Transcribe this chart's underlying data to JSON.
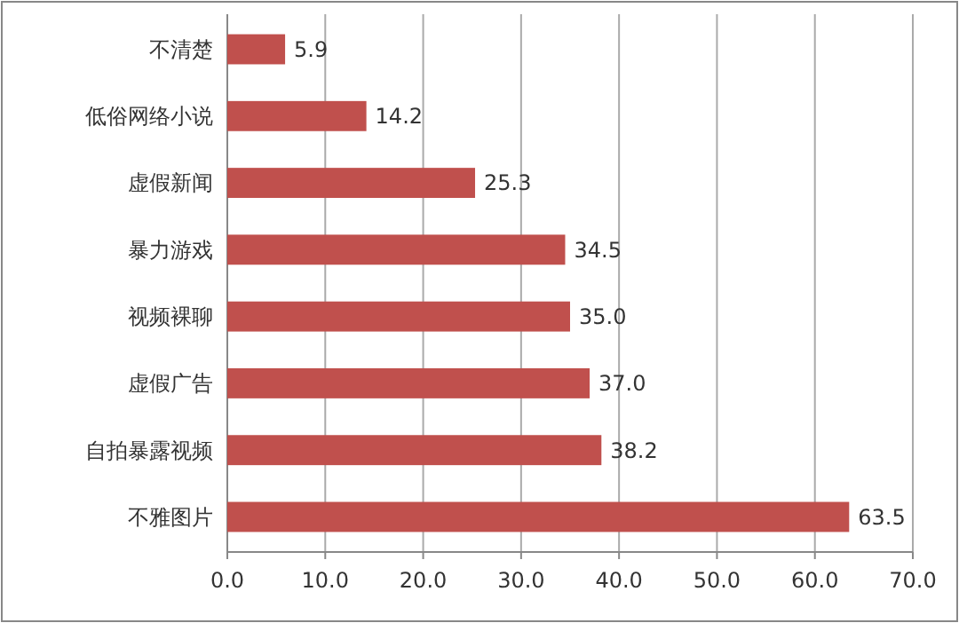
{
  "chart_data": {
    "type": "bar",
    "orientation": "horizontal",
    "categories": [
      "不清楚",
      "低俗网络小说",
      "虚假新闻",
      "暴力游戏",
      "视频裸聊",
      "虚假广告",
      "自拍暴露视频",
      "不雅图片"
    ],
    "values": [
      5.9,
      14.2,
      25.3,
      34.5,
      35.0,
      37.0,
      38.2,
      63.5
    ],
    "value_labels": [
      "5.9",
      "14.2",
      "25.3",
      "34.5",
      "35.0",
      "37.0",
      "38.2",
      "63.5"
    ],
    "color": "#c0504d",
    "xlim": [
      0,
      70
    ],
    "xticks": [
      {
        "value": 0,
        "label": "0.0"
      },
      {
        "value": 10,
        "label": "10.0"
      },
      {
        "value": 20,
        "label": "20.0"
      },
      {
        "value": 30,
        "label": "30.0"
      },
      {
        "value": 40,
        "label": "40.0"
      },
      {
        "value": 50,
        "label": "50.0"
      },
      {
        "value": 60,
        "label": "60.0"
      },
      {
        "value": 70,
        "label": "70.0"
      }
    ],
    "grid": "x"
  }
}
